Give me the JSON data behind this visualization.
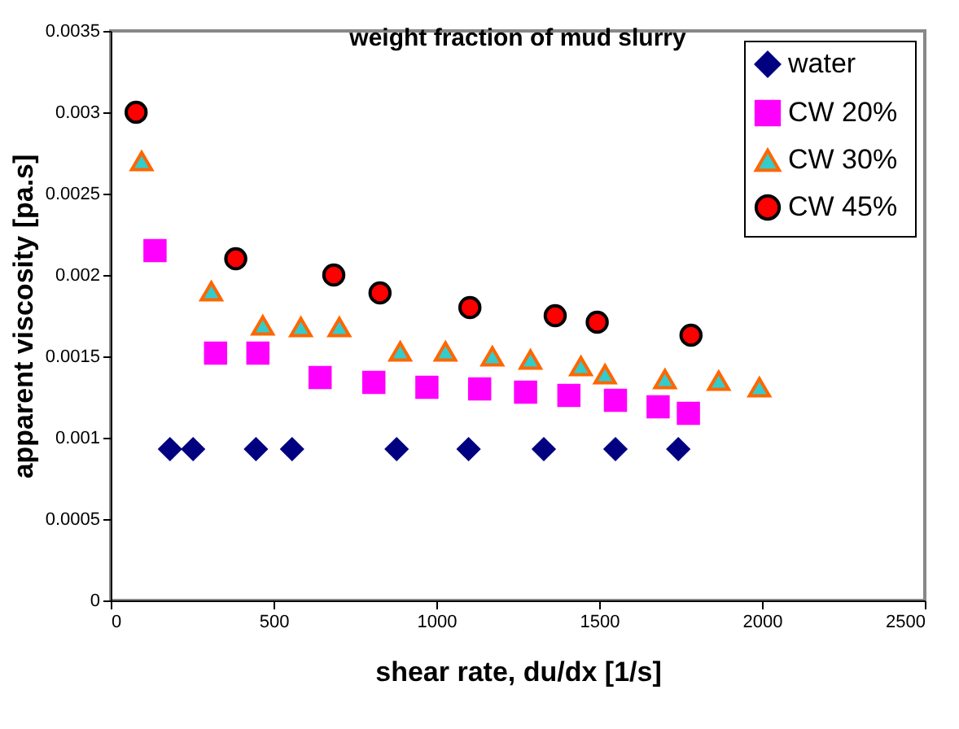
{
  "chart_data": {
    "type": "scatter",
    "title": "weight fraction of mud slurry",
    "xlabel": "shear rate, du/dx [1/s]",
    "ylabel": "apparent viscosity [pa.s]",
    "xlim": [
      0,
      2500
    ],
    "xticks": [
      0,
      500,
      1000,
      1500,
      2000,
      2500
    ],
    "ylim": [
      0,
      0.0035
    ],
    "yticks": [
      0,
      0.0005,
      0.001,
      0.0015,
      0.002,
      0.0025,
      0.003,
      0.0035
    ],
    "grid": false,
    "legend": "top right",
    "series": [
      {
        "name": "water",
        "color": "#000080",
        "marker": "diamond",
        "x": [
          182,
          253,
          446,
          557,
          878,
          1099,
          1330,
          1550,
          1743
        ],
        "values": [
          0.00093,
          0.00093,
          0.00093,
          0.00093,
          0.00093,
          0.00093,
          0.00093,
          0.00093,
          0.00093
        ]
      },
      {
        "name": "CW  20%",
        "color": "#ff00ff",
        "marker": "square",
        "x": [
          136,
          322,
          452,
          643,
          808,
          971,
          1133,
          1274,
          1407,
          1550,
          1681,
          1774
        ],
        "values": [
          0.00215,
          0.00152,
          0.00152,
          0.00137,
          0.00134,
          0.00131,
          0.0013,
          0.00128,
          0.00126,
          0.00123,
          0.00119,
          0.00115
        ]
      },
      {
        "name": "CW  30%",
        "color": "#33cccc",
        "marker": "triangle",
        "x": [
          95,
          309,
          467,
          584,
          702,
          889,
          1028,
          1172,
          1289,
          1444,
          1518,
          1702,
          1867,
          1992
        ],
        "values": [
          0.0027,
          0.0019,
          0.00169,
          0.00168,
          0.00168,
          0.00153,
          0.00153,
          0.0015,
          0.00148,
          0.00144,
          0.00139,
          0.00136,
          0.00135,
          0.00131
        ]
      },
      {
        "name": "CW  45%",
        "color": "#ff0000",
        "marker": "circle",
        "x": [
          78,
          384,
          685,
          827,
          1103,
          1365,
          1494,
          1782
        ],
        "values": [
          0.003,
          0.0021,
          0.002,
          0.00189,
          0.0018,
          0.00175,
          0.00171,
          0.00163
        ]
      }
    ]
  }
}
